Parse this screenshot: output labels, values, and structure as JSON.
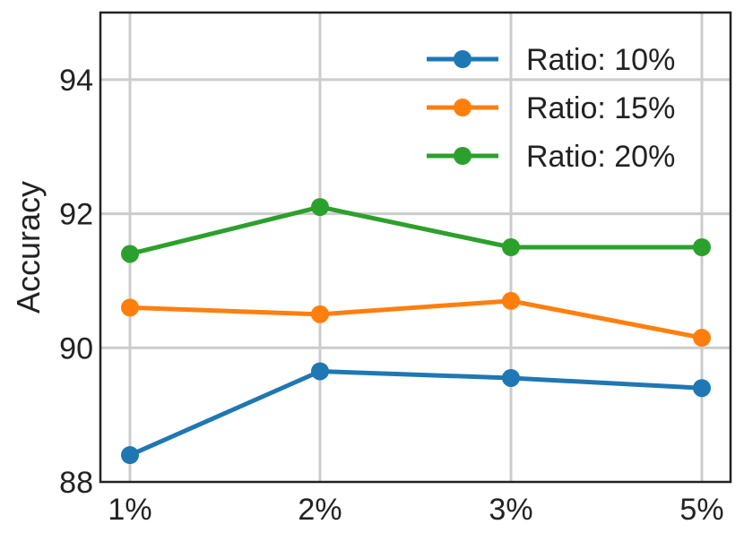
{
  "chart_data": {
    "type": "line",
    "title": "",
    "xlabel": "",
    "ylabel": "Accuracy",
    "categories": [
      "1%",
      "2%",
      "3%",
      "5%"
    ],
    "ylim": [
      88,
      95
    ],
    "yticks": [
      "88",
      "90",
      "92",
      "94"
    ],
    "grid": true,
    "legend_position": "top-right",
    "series": [
      {
        "name": "Ratio: 10%",
        "color": "#1f77b4",
        "values": [
          88.4,
          89.65,
          89.55,
          89.4
        ]
      },
      {
        "name": "Ratio: 15%",
        "color": "#ff7f0e",
        "values": [
          90.6,
          90.5,
          90.7,
          90.15
        ]
      },
      {
        "name": "Ratio: 20%",
        "color": "#2ca02c",
        "values": [
          91.4,
          92.1,
          91.5,
          91.5
        ]
      }
    ]
  }
}
